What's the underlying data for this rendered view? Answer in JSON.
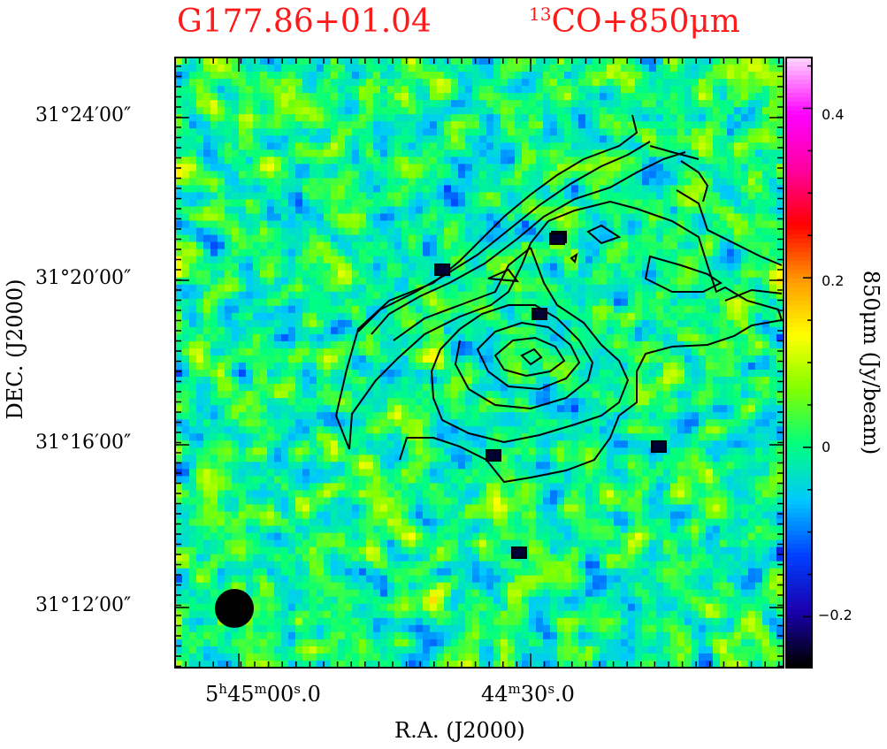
{
  "chart_data": {
    "type": "heatmap",
    "title_source": "G177.86+01.04",
    "title_tracer_sup": "13",
    "title_tracer": "CO+850μm",
    "xlabel": "R.A. (J2000)",
    "ylabel": "DEC. (J2000)",
    "colorbar_label": "850μm (Jy/beam)",
    "x_ticks": [
      {
        "ra_sec": 0.0,
        "h": "5",
        "m": "45",
        "s": "00",
        "frac": "0",
        "label_parts": [
          "5",
          "h",
          "45",
          "m",
          "00",
          "s",
          ".0"
        ]
      },
      {
        "ra_sec": -30.0,
        "m": "44",
        "s": "30",
        "frac": "0",
        "label_parts": [
          "",
          "",
          "44",
          "m",
          "30",
          "s",
          ".0"
        ]
      }
    ],
    "y_ticks": [
      {
        "dec_arcmin": 24,
        "label": "31°24′00″"
      },
      {
        "dec_arcmin": 20,
        "label": "31°20′00″"
      },
      {
        "dec_arcmin": 16,
        "label": "31°16′00″"
      },
      {
        "dec_arcmin": 12,
        "label": "31°12′00″"
      }
    ],
    "colorbar": {
      "vmin": -0.26,
      "vmax": 0.46,
      "ticks": [
        {
          "value": 0.4,
          "label": "0.4"
        },
        {
          "value": 0.2,
          "label": "0.2"
        },
        {
          "value": 0,
          "label": "0"
        },
        {
          "value": -0.2,
          "label": "−0.2"
        }
      ],
      "colormap": [
        "#000000",
        "#1a00b0",
        "#0040ff",
        "#00c8ff",
        "#00ff80",
        "#80ff00",
        "#ffff00",
        "#ff9900",
        "#ff0000",
        "#ff00a0",
        "#ff00ff",
        "#ffd0ff"
      ]
    },
    "beam": {
      "shape": "filled circle",
      "color": "#000000",
      "position": "bottom-left"
    },
    "contours": {
      "color": "#000000",
      "levels_shown": 7,
      "description_note": ""
    },
    "colors": {
      "title": "#ff1a1a",
      "contour": "#000000"
    }
  }
}
